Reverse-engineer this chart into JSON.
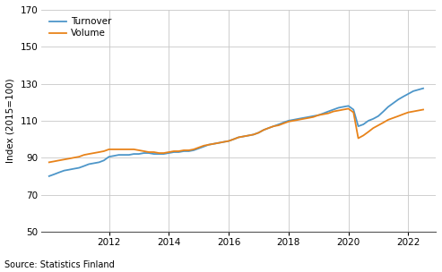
{
  "title": "",
  "ylabel": "Index (2015=100)",
  "source": "Source: Statistics Finland",
  "turnover_color": "#4d96c9",
  "volume_color": "#e8831a",
  "background_color": "#ffffff",
  "grid_color": "#c8c8c8",
  "ylim": [
    50,
    170
  ],
  "yticks": [
    50,
    70,
    90,
    110,
    130,
    150,
    170
  ],
  "xlim_start": 2009.75,
  "xlim_end": 2022.92,
  "xtick_years": [
    2012,
    2014,
    2016,
    2018,
    2020,
    2022
  ],
  "legend_labels": [
    "Turnover",
    "Volume"
  ],
  "turnover": [
    [
      2010.0,
      80.0
    ],
    [
      2010.17,
      81.0
    ],
    [
      2010.33,
      82.0
    ],
    [
      2010.5,
      83.0
    ],
    [
      2010.67,
      83.5
    ],
    [
      2010.83,
      84.0
    ],
    [
      2011.0,
      84.5
    ],
    [
      2011.17,
      85.5
    ],
    [
      2011.33,
      86.5
    ],
    [
      2011.5,
      87.0
    ],
    [
      2011.67,
      87.5
    ],
    [
      2011.83,
      88.5
    ],
    [
      2012.0,
      90.5
    ],
    [
      2012.17,
      91.0
    ],
    [
      2012.33,
      91.5
    ],
    [
      2012.5,
      91.5
    ],
    [
      2012.67,
      91.5
    ],
    [
      2012.83,
      92.0
    ],
    [
      2013.0,
      92.0
    ],
    [
      2013.17,
      92.5
    ],
    [
      2013.33,
      92.5
    ],
    [
      2013.5,
      92.0
    ],
    [
      2013.67,
      92.0
    ],
    [
      2013.83,
      92.0
    ],
    [
      2014.0,
      92.5
    ],
    [
      2014.17,
      93.0
    ],
    [
      2014.33,
      93.0
    ],
    [
      2014.5,
      93.5
    ],
    [
      2014.67,
      93.5
    ],
    [
      2014.83,
      94.0
    ],
    [
      2015.0,
      95.0
    ],
    [
      2015.17,
      96.0
    ],
    [
      2015.33,
      97.0
    ],
    [
      2015.5,
      97.5
    ],
    [
      2015.67,
      98.0
    ],
    [
      2015.83,
      98.5
    ],
    [
      2016.0,
      99.0
    ],
    [
      2016.17,
      100.0
    ],
    [
      2016.33,
      101.0
    ],
    [
      2016.5,
      101.5
    ],
    [
      2016.67,
      102.0
    ],
    [
      2016.83,
      102.5
    ],
    [
      2017.0,
      103.5
    ],
    [
      2017.17,
      105.0
    ],
    [
      2017.33,
      106.0
    ],
    [
      2017.5,
      107.0
    ],
    [
      2017.67,
      108.0
    ],
    [
      2017.83,
      109.0
    ],
    [
      2018.0,
      110.0
    ],
    [
      2018.17,
      110.5
    ],
    [
      2018.33,
      111.0
    ],
    [
      2018.5,
      111.5
    ],
    [
      2018.67,
      112.0
    ],
    [
      2018.83,
      112.5
    ],
    [
      2019.0,
      113.0
    ],
    [
      2019.17,
      114.0
    ],
    [
      2019.33,
      115.0
    ],
    [
      2019.5,
      116.0
    ],
    [
      2019.67,
      117.0
    ],
    [
      2019.83,
      117.5
    ],
    [
      2020.0,
      118.0
    ],
    [
      2020.17,
      116.0
    ],
    [
      2020.33,
      107.0
    ],
    [
      2020.5,
      108.0
    ],
    [
      2020.67,
      110.0
    ],
    [
      2020.83,
      111.0
    ],
    [
      2021.0,
      112.5
    ],
    [
      2021.17,
      115.0
    ],
    [
      2021.33,
      117.5
    ],
    [
      2021.5,
      119.5
    ],
    [
      2021.67,
      121.5
    ],
    [
      2021.83,
      123.0
    ],
    [
      2022.0,
      124.5
    ],
    [
      2022.17,
      126.0
    ],
    [
      2022.5,
      127.5
    ]
  ],
  "volume": [
    [
      2010.0,
      87.5
    ],
    [
      2010.17,
      88.0
    ],
    [
      2010.33,
      88.5
    ],
    [
      2010.5,
      89.0
    ],
    [
      2010.67,
      89.5
    ],
    [
      2010.83,
      90.0
    ],
    [
      2011.0,
      90.5
    ],
    [
      2011.17,
      91.5
    ],
    [
      2011.33,
      92.0
    ],
    [
      2011.5,
      92.5
    ],
    [
      2011.67,
      93.0
    ],
    [
      2011.83,
      93.5
    ],
    [
      2012.0,
      94.5
    ],
    [
      2012.17,
      94.5
    ],
    [
      2012.33,
      94.5
    ],
    [
      2012.5,
      94.5
    ],
    [
      2012.67,
      94.5
    ],
    [
      2012.83,
      94.5
    ],
    [
      2013.0,
      94.0
    ],
    [
      2013.17,
      93.5
    ],
    [
      2013.33,
      93.0
    ],
    [
      2013.5,
      93.0
    ],
    [
      2013.67,
      92.5
    ],
    [
      2013.83,
      92.5
    ],
    [
      2014.0,
      93.0
    ],
    [
      2014.17,
      93.5
    ],
    [
      2014.33,
      93.5
    ],
    [
      2014.5,
      94.0
    ],
    [
      2014.67,
      94.0
    ],
    [
      2014.83,
      94.5
    ],
    [
      2015.0,
      95.5
    ],
    [
      2015.17,
      96.5
    ],
    [
      2015.33,
      97.0
    ],
    [
      2015.5,
      97.5
    ],
    [
      2015.67,
      98.0
    ],
    [
      2015.83,
      98.5
    ],
    [
      2016.0,
      99.0
    ],
    [
      2016.17,
      100.0
    ],
    [
      2016.33,
      101.0
    ],
    [
      2016.5,
      101.5
    ],
    [
      2016.67,
      102.0
    ],
    [
      2016.83,
      102.5
    ],
    [
      2017.0,
      103.5
    ],
    [
      2017.17,
      105.0
    ],
    [
      2017.33,
      106.0
    ],
    [
      2017.5,
      107.0
    ],
    [
      2017.67,
      107.5
    ],
    [
      2017.83,
      108.5
    ],
    [
      2018.0,
      109.5
    ],
    [
      2018.17,
      110.0
    ],
    [
      2018.33,
      110.5
    ],
    [
      2018.5,
      111.0
    ],
    [
      2018.67,
      111.5
    ],
    [
      2018.83,
      112.0
    ],
    [
      2019.0,
      113.0
    ],
    [
      2019.17,
      113.5
    ],
    [
      2019.33,
      114.0
    ],
    [
      2019.5,
      115.0
    ],
    [
      2019.67,
      115.5
    ],
    [
      2019.83,
      116.0
    ],
    [
      2020.0,
      116.5
    ],
    [
      2020.17,
      114.5
    ],
    [
      2020.33,
      100.5
    ],
    [
      2020.5,
      102.0
    ],
    [
      2020.67,
      104.0
    ],
    [
      2020.83,
      106.0
    ],
    [
      2021.0,
      107.5
    ],
    [
      2021.17,
      109.0
    ],
    [
      2021.33,
      110.5
    ],
    [
      2021.5,
      111.5
    ],
    [
      2021.67,
      112.5
    ],
    [
      2021.83,
      113.5
    ],
    [
      2022.0,
      114.5
    ],
    [
      2022.17,
      115.0
    ],
    [
      2022.5,
      116.0
    ]
  ]
}
